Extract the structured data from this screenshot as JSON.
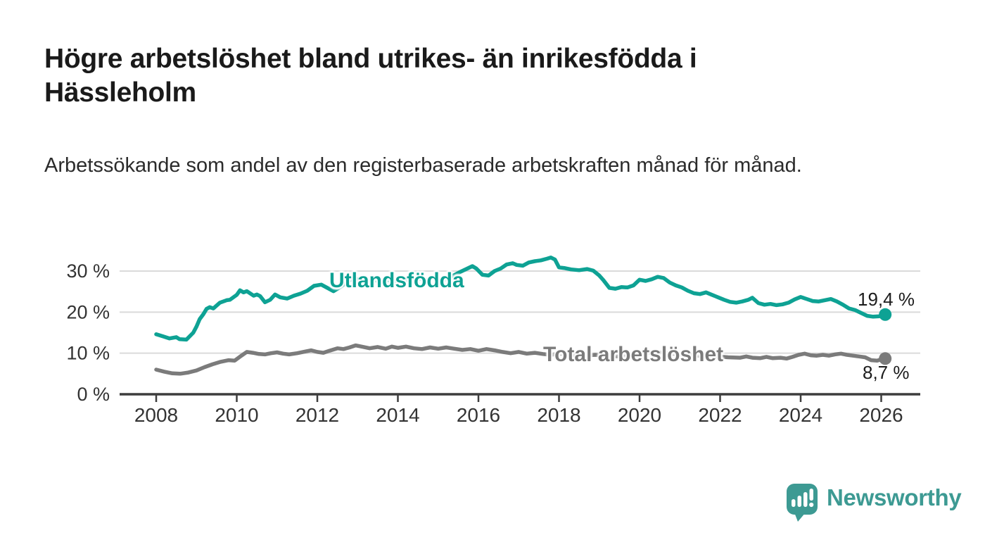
{
  "header": {
    "title": "Högre arbetslöshet bland utrikes- än inrikesfödda i Hässleholm",
    "subtitle": "Arbetssökande som andel av den registerbaserade arbetskraften månad för månad."
  },
  "footer": {
    "brand": "Newsworthy",
    "logo_icon": "speech-bubble-bar-chart",
    "brand_color": "#3d9a93"
  },
  "chart_data": {
    "type": "line",
    "title": "Högre arbetslöshet bland utrikes- än inrikesfödda i Hässleholm",
    "subtitle": "Arbetssökande som andel av den registerbaserade arbetskraften månad för månad.",
    "xlabel": "",
    "ylabel": "",
    "unit": "%",
    "grid": "horizontal",
    "legend": "inline-labels",
    "xlim": [
      2007.1,
      2027.0
    ],
    "ylim": [
      0,
      34
    ],
    "x_ticks": [
      2008,
      2010,
      2012,
      2014,
      2016,
      2018,
      2020,
      2022,
      2024,
      2026
    ],
    "y_ticks": [
      {
        "value": 0,
        "label": "0 %"
      },
      {
        "value": 10,
        "label": "10 %"
      },
      {
        "value": 20,
        "label": "20 %"
      },
      {
        "value": 30,
        "label": "30 %"
      }
    ],
    "style": {
      "grid_color": "#dadada",
      "axis_color": "#3d3d3d",
      "axis_text_color": "#333333"
    },
    "series": [
      {
        "name": "Total arbetslöshet",
        "color": "#7b7b7b",
        "end_label": "8,7 %",
        "end_value": 8.7,
        "points": [
          [
            2008.0,
            6.0
          ],
          [
            2008.2,
            5.5
          ],
          [
            2008.4,
            5.1
          ],
          [
            2008.6,
            5.0
          ],
          [
            2008.8,
            5.3
          ],
          [
            2009.0,
            5.8
          ],
          [
            2009.2,
            6.6
          ],
          [
            2009.4,
            7.3
          ],
          [
            2009.6,
            7.9
          ],
          [
            2009.8,
            8.3
          ],
          [
            2009.95,
            8.2
          ],
          [
            2010.1,
            9.3
          ],
          [
            2010.25,
            10.3
          ],
          [
            2010.4,
            10.1
          ],
          [
            2010.55,
            9.8
          ],
          [
            2010.7,
            9.7
          ],
          [
            2010.85,
            10.0
          ],
          [
            2011.0,
            10.2
          ],
          [
            2011.15,
            9.9
          ],
          [
            2011.3,
            9.7
          ],
          [
            2011.5,
            10.0
          ],
          [
            2011.7,
            10.4
          ],
          [
            2011.85,
            10.7
          ],
          [
            2012.0,
            10.3
          ],
          [
            2012.15,
            10.1
          ],
          [
            2012.3,
            10.6
          ],
          [
            2012.5,
            11.2
          ],
          [
            2012.65,
            11.0
          ],
          [
            2012.8,
            11.4
          ],
          [
            2012.95,
            11.9
          ],
          [
            2013.1,
            11.6
          ],
          [
            2013.3,
            11.2
          ],
          [
            2013.5,
            11.5
          ],
          [
            2013.7,
            11.1
          ],
          [
            2013.85,
            11.6
          ],
          [
            2014.0,
            11.3
          ],
          [
            2014.2,
            11.6
          ],
          [
            2014.4,
            11.2
          ],
          [
            2014.6,
            11.0
          ],
          [
            2014.8,
            11.4
          ],
          [
            2015.0,
            11.1
          ],
          [
            2015.2,
            11.4
          ],
          [
            2015.4,
            11.1
          ],
          [
            2015.6,
            10.8
          ],
          [
            2015.8,
            11.0
          ],
          [
            2016.0,
            10.6
          ],
          [
            2016.2,
            11.0
          ],
          [
            2016.4,
            10.7
          ],
          [
            2016.6,
            10.3
          ],
          [
            2016.8,
            10.0
          ],
          [
            2017.0,
            10.3
          ],
          [
            2017.2,
            9.9
          ],
          [
            2017.4,
            10.1
          ],
          [
            2017.6,
            9.8
          ],
          [
            2017.8,
            9.6
          ],
          [
            2018.0,
            9.9
          ],
          [
            2018.3,
            9.6
          ],
          [
            2018.6,
            9.4
          ],
          [
            2018.9,
            9.6
          ],
          [
            2019.2,
            9.3
          ],
          [
            2019.5,
            9.2
          ],
          [
            2019.8,
            9.5
          ],
          [
            2020.1,
            10.0
          ],
          [
            2020.4,
            10.3
          ],
          [
            2020.7,
            10.0
          ],
          [
            2021.0,
            9.7
          ],
          [
            2021.3,
            9.5
          ],
          [
            2021.6,
            9.3
          ],
          [
            2021.9,
            9.2
          ],
          [
            2022.2,
            9.0
          ],
          [
            2022.5,
            8.9
          ],
          [
            2022.65,
            9.2
          ],
          [
            2022.8,
            8.9
          ],
          [
            2023.0,
            8.8
          ],
          [
            2023.15,
            9.1
          ],
          [
            2023.3,
            8.8
          ],
          [
            2023.5,
            8.9
          ],
          [
            2023.65,
            8.7
          ],
          [
            2023.8,
            9.1
          ],
          [
            2023.95,
            9.6
          ],
          [
            2024.1,
            9.9
          ],
          [
            2024.25,
            9.5
          ],
          [
            2024.4,
            9.4
          ],
          [
            2024.55,
            9.6
          ],
          [
            2024.7,
            9.4
          ],
          [
            2024.85,
            9.7
          ],
          [
            2025.0,
            9.9
          ],
          [
            2025.15,
            9.6
          ],
          [
            2025.3,
            9.4
          ],
          [
            2025.45,
            9.2
          ],
          [
            2025.6,
            9.0
          ],
          [
            2025.75,
            8.3
          ],
          [
            2025.9,
            8.2
          ],
          [
            2026.0,
            8.5
          ],
          [
            2026.1,
            8.7
          ]
        ]
      },
      {
        "name": "Utlandsfödda",
        "color": "#0ea294",
        "end_label": "19,4 %",
        "end_value": 19.4,
        "points": [
          [
            2008.0,
            14.6
          ],
          [
            2008.17,
            14.1
          ],
          [
            2008.33,
            13.6
          ],
          [
            2008.5,
            13.9
          ],
          [
            2008.58,
            13.4
          ],
          [
            2008.75,
            13.3
          ],
          [
            2008.92,
            15.0
          ],
          [
            2009.0,
            16.5
          ],
          [
            2009.08,
            18.3
          ],
          [
            2009.17,
            19.5
          ],
          [
            2009.25,
            20.8
          ],
          [
            2009.33,
            21.2
          ],
          [
            2009.42,
            20.9
          ],
          [
            2009.58,
            22.3
          ],
          [
            2009.75,
            22.9
          ],
          [
            2009.83,
            23.0
          ],
          [
            2010.0,
            24.2
          ],
          [
            2010.08,
            25.3
          ],
          [
            2010.17,
            24.8
          ],
          [
            2010.25,
            25.1
          ],
          [
            2010.42,
            24.0
          ],
          [
            2010.5,
            24.3
          ],
          [
            2010.58,
            23.9
          ],
          [
            2010.7,
            22.4
          ],
          [
            2010.83,
            23.0
          ],
          [
            2010.95,
            24.3
          ],
          [
            2011.08,
            23.6
          ],
          [
            2011.25,
            23.3
          ],
          [
            2011.42,
            24.0
          ],
          [
            2011.58,
            24.5
          ],
          [
            2011.75,
            25.2
          ],
          [
            2011.92,
            26.4
          ],
          [
            2012.1,
            26.7
          ],
          [
            2012.25,
            25.9
          ],
          [
            2012.4,
            25.1
          ],
          [
            2012.6,
            26.3
          ],
          [
            2012.75,
            27.4
          ],
          [
            2012.9,
            28.3
          ],
          [
            2013.0,
            28.0
          ],
          [
            2013.2,
            27.4
          ],
          [
            2013.4,
            27.9
          ],
          [
            2013.6,
            27.3
          ],
          [
            2013.75,
            27.8
          ],
          [
            2013.9,
            27.4
          ],
          [
            2014.1,
            28.1
          ],
          [
            2014.3,
            27.7
          ],
          [
            2014.5,
            28.2
          ],
          [
            2014.7,
            27.8
          ],
          [
            2014.9,
            28.5
          ],
          [
            2015.05,
            27.2
          ],
          [
            2015.2,
            28.2
          ],
          [
            2015.4,
            29.0
          ],
          [
            2015.55,
            29.8
          ],
          [
            2015.7,
            30.5
          ],
          [
            2015.85,
            31.2
          ],
          [
            2015.95,
            30.6
          ],
          [
            2016.1,
            29.1
          ],
          [
            2016.25,
            28.9
          ],
          [
            2016.4,
            30.0
          ],
          [
            2016.55,
            30.6
          ],
          [
            2016.7,
            31.6
          ],
          [
            2016.85,
            31.9
          ],
          [
            2016.95,
            31.5
          ],
          [
            2017.1,
            31.3
          ],
          [
            2017.25,
            32.1
          ],
          [
            2017.4,
            32.4
          ],
          [
            2017.55,
            32.6
          ],
          [
            2017.7,
            33.0
          ],
          [
            2017.8,
            33.3
          ],
          [
            2017.9,
            32.8
          ],
          [
            2018.0,
            30.9
          ],
          [
            2018.15,
            30.7
          ],
          [
            2018.3,
            30.4
          ],
          [
            2018.5,
            30.2
          ],
          [
            2018.7,
            30.5
          ],
          [
            2018.85,
            30.1
          ],
          [
            2019.0,
            28.9
          ],
          [
            2019.1,
            27.8
          ],
          [
            2019.25,
            25.9
          ],
          [
            2019.4,
            25.7
          ],
          [
            2019.55,
            26.1
          ],
          [
            2019.7,
            26.0
          ],
          [
            2019.85,
            26.5
          ],
          [
            2020.0,
            27.9
          ],
          [
            2020.15,
            27.6
          ],
          [
            2020.3,
            28.0
          ],
          [
            2020.45,
            28.6
          ],
          [
            2020.6,
            28.3
          ],
          [
            2020.75,
            27.2
          ],
          [
            2020.9,
            26.5
          ],
          [
            2021.05,
            26.0
          ],
          [
            2021.2,
            25.2
          ],
          [
            2021.35,
            24.6
          ],
          [
            2021.5,
            24.4
          ],
          [
            2021.65,
            24.8
          ],
          [
            2021.8,
            24.2
          ],
          [
            2021.95,
            23.6
          ],
          [
            2022.1,
            23.0
          ],
          [
            2022.25,
            22.5
          ],
          [
            2022.4,
            22.3
          ],
          [
            2022.55,
            22.6
          ],
          [
            2022.7,
            23.0
          ],
          [
            2022.8,
            23.5
          ],
          [
            2022.95,
            22.2
          ],
          [
            2023.1,
            21.8
          ],
          [
            2023.25,
            22.0
          ],
          [
            2023.4,
            21.7
          ],
          [
            2023.55,
            21.9
          ],
          [
            2023.7,
            22.3
          ],
          [
            2023.85,
            23.1
          ],
          [
            2024.0,
            23.7
          ],
          [
            2024.15,
            23.2
          ],
          [
            2024.3,
            22.7
          ],
          [
            2024.45,
            22.6
          ],
          [
            2024.6,
            22.9
          ],
          [
            2024.75,
            23.2
          ],
          [
            2024.9,
            22.6
          ],
          [
            2025.05,
            21.8
          ],
          [
            2025.2,
            20.9
          ],
          [
            2025.35,
            20.5
          ],
          [
            2025.5,
            19.8
          ],
          [
            2025.65,
            19.1
          ],
          [
            2025.8,
            18.9
          ],
          [
            2025.95,
            19.0
          ],
          [
            2026.1,
            19.4
          ]
        ]
      }
    ]
  }
}
